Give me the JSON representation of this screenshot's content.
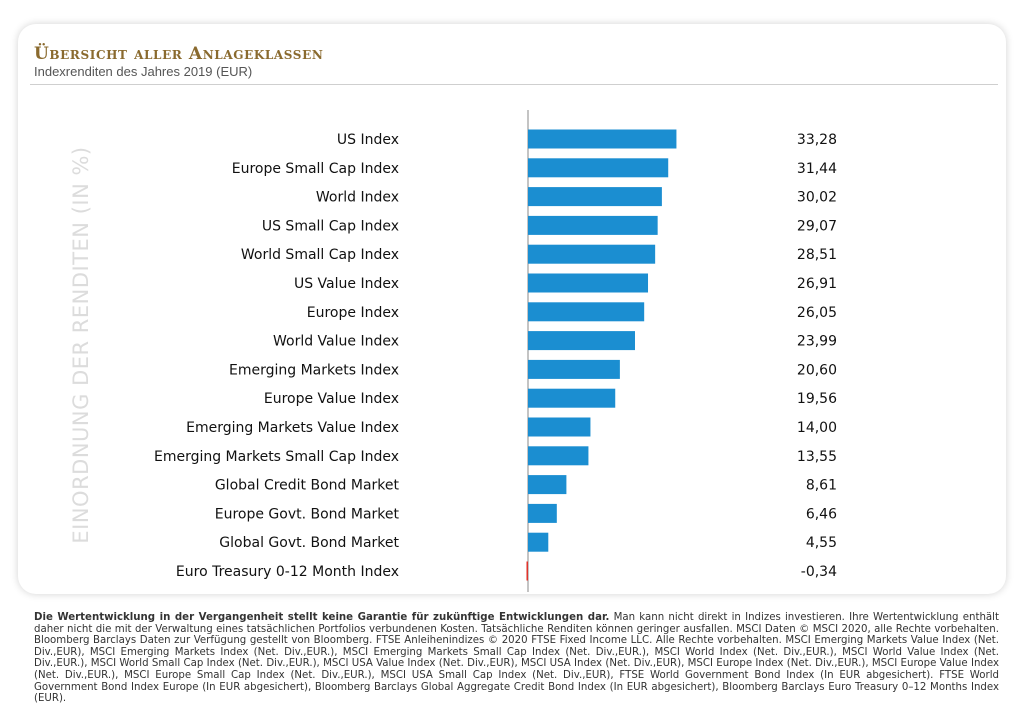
{
  "header": {
    "title": "Übersicht aller Anlageklassen",
    "subtitle": "Indexrenditen des Jahres 2019 (EUR)"
  },
  "chart_data": {
    "type": "bar",
    "orientation": "horizontal",
    "ylabel": "EINORDNUNG DER RENDITEN (IN %)",
    "categories": [
      "US Index",
      "Europe Small Cap Index",
      "World Index",
      "US Small Cap Index",
      "World Small Cap Index",
      "US Value Index",
      "Europe Index",
      "World Value Index",
      "Emerging Markets Index",
      "Europe Value Index",
      "Emerging Markets Value Index",
      "Emerging Markets Small Cap Index",
      "Global Credit Bond Market",
      "Europe Govt. Bond Market",
      "Global Govt. Bond Market",
      "Euro Treasury 0-12 Month Index"
    ],
    "values": [
      33.28,
      31.44,
      30.02,
      29.07,
      28.51,
      26.91,
      26.05,
      23.99,
      20.6,
      19.56,
      14.0,
      13.55,
      8.61,
      6.46,
      4.55,
      -0.34
    ],
    "value_labels": [
      "33,28",
      "31,44",
      "30,02",
      "29,07",
      "28,51",
      "26,91",
      "26,05",
      "23,99",
      "20,60",
      "19,56",
      "14,00",
      "13,55",
      "8,61",
      "6,46",
      "4,55",
      "-0,34"
    ],
    "colors": {
      "positive": "#1b8ed1",
      "negative": "#e0332b",
      "axis": "#888888"
    }
  },
  "footnote": {
    "bold": "Die Wertentwicklung in der Vergangenheit stellt keine Garantie für zukünftige Entwicklungen dar.",
    "text": " Man kann nicht direkt in Indizes investieren. Ihre Wertentwicklung enthält daher nicht die mit der Verwaltung eines tatsächlichen Portfolios verbundenen Kosten. Tatsächliche Renditen können geringer ausfallen. MSCI Daten © MSCI 2020, alle Rechte vorbehalten. Bloomberg Barclays Daten zur Verfügung gestellt von Bloomberg. FTSE Anleihenindizes © 2020 FTSE Fixed Income LLC. Alle Rechte vorbehalten. MSCI Emerging Markets Value Index (Net. Div.,EUR), MSCI Emerging Markets Index (Net. Div.,EUR.), MSCI Emerging Markets Small Cap Index (Net. Div.,EUR.), MSCI World Index (Net. Div.,EUR.), MSCI World Value Index (Net. Div.,EUR.), MSCI World Small Cap Index (Net. Div.,EUR.), MSCI USA Value Index (Net. Div.,EUR), MSCI USA Index (Net. Div.,EUR), MSCI Europe Index (Net. Div.,EUR.), MSCI Europe Value Index (Net. Div.,EUR.), MSCI Europe Small Cap Index (Net. Div.,EUR.), MSCI USA Small Cap Index (Net. Div.,EUR), FTSE World Government Bond Index (In EUR abgesichert). FTSE World Government Bond Index Europe (In EUR abgesichert), Bloomberg Barclays Global Aggregate Credit Bond Index (In EUR abgesichert), Bloomberg Barclays Euro Treasury 0–12 Months Index (EUR)."
  }
}
